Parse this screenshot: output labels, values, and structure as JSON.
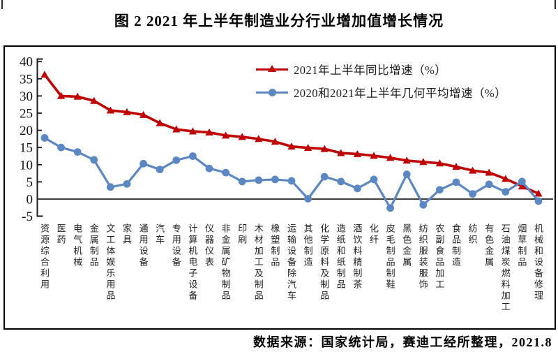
{
  "figure": {
    "title": "图 2  2021 年上半年制造业分行业增加值增长情况",
    "source_note": "数据来源：国家统计局，赛迪工经所整理，2021.8"
  },
  "legend": {
    "items": [
      {
        "label": "2021年上半年同比增速（%）",
        "marker": "triangle",
        "color": "#c00000"
      },
      {
        "label": "2020和2021年上半年几何平均增速（%）",
        "marker": "circle",
        "color": "#5b87c3"
      }
    ]
  },
  "chart_data": {
    "type": "line",
    "title": "图 2  2021 年上半年制造业分行业增加值增长情况",
    "xlabel": "",
    "ylabel": "",
    "ylim": [
      -5,
      40
    ],
    "yticks": [
      40,
      35,
      30,
      25,
      20,
      15,
      10,
      5,
      0,
      -5
    ],
    "grid": false,
    "legend_position": "top-center-inside",
    "categories": [
      "资源综合利用",
      "医药",
      "电气机械",
      "金属制品",
      "文工体娱乐用品",
      "家具",
      "通用设备",
      "汽车",
      "专用设备",
      "计算机电子设备",
      "仪器仪表",
      "非金属矿物制品",
      "印刷",
      "木材加工及制品",
      "橡塑制品",
      "运输设备除汽车",
      "其他制造",
      "化学原料及制品",
      "造纸和纸制品",
      "酒饮料精制茶",
      "化纤",
      "皮毛制品制鞋",
      "黑色金属",
      "纺织服装服饰",
      "农副食品加工",
      "食品制造",
      "纺织",
      "有色金属",
      "石油煤炭燃料加工",
      "烟草制品",
      "机械和设备修理"
    ],
    "series": [
      {
        "name": "2021年上半年同比增速（%）",
        "color": "#c00000",
        "marker": "triangle",
        "values": [
          36.2,
          30.0,
          29.8,
          28.6,
          25.8,
          25.3,
          24.5,
          22.1,
          20.3,
          19.7,
          19.4,
          18.5,
          18.1,
          17.5,
          16.7,
          15.3,
          14.9,
          14.6,
          13.4,
          13.1,
          12.6,
          12.0,
          11.2,
          10.8,
          10.4,
          9.4,
          8.3,
          7.7,
          5.9,
          3.7,
          1.6
        ]
      },
      {
        "name": "2020和2021年上半年几何平均增速（%）",
        "color": "#5b87c3",
        "marker": "circle",
        "values": [
          17.8,
          15.0,
          13.7,
          11.4,
          3.5,
          4.4,
          10.3,
          8.6,
          11.3,
          12.5,
          8.9,
          7.7,
          5.1,
          5.5,
          5.7,
          5.3,
          0.1,
          6.5,
          5.1,
          3.1,
          5.7,
          -2.6,
          7.2,
          -1.7,
          2.7,
          4.9,
          1.5,
          4.3,
          2.1,
          5.1,
          -0.6
        ]
      }
    ],
    "colors": {
      "axis": "#1a1a1a",
      "zero_line": "#3f3f3f",
      "tick_label": "#111111"
    }
  }
}
